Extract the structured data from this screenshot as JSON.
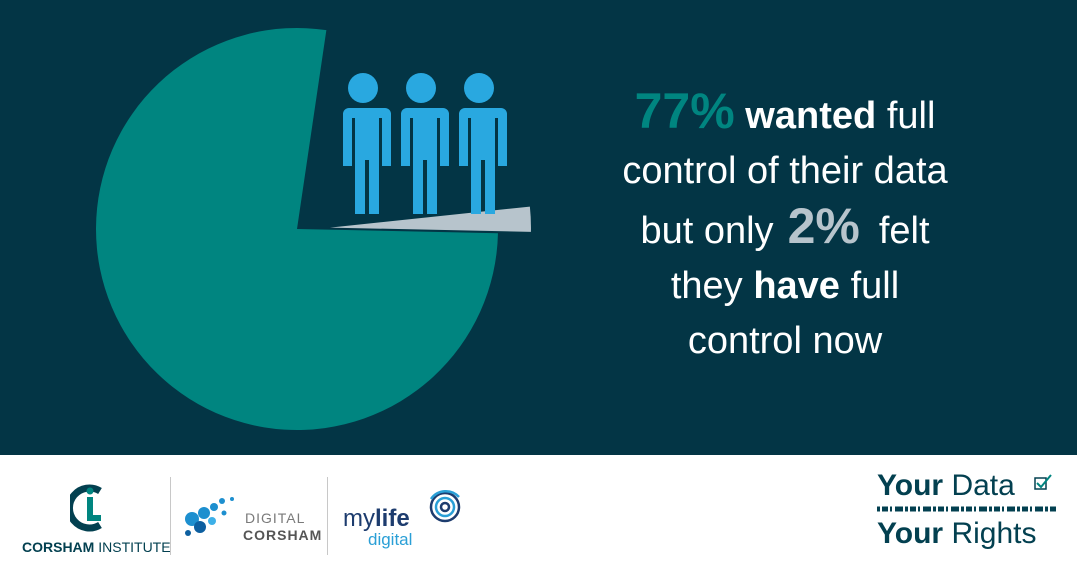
{
  "chart_data": {
    "type": "pie",
    "values": [
      77,
      2
    ],
    "value_labels": [
      "77%",
      "2%"
    ],
    "colors": [
      "#008580",
      "#b7c4cc"
    ],
    "exploded": [
      false,
      true
    ]
  },
  "headline": {
    "wanted": "wanted",
    "full_1": "full",
    "line2": "control of their data",
    "but_only": "but only",
    "felt": "felt",
    "they": "they",
    "have": "have",
    "full_2": "full",
    "line5": "control now"
  },
  "footer": {
    "corsham_institute": {
      "bold": "CORSHAM",
      "rest": "INSTITUTE"
    },
    "digital_corsham": {
      "top": "DIGITAL",
      "bottom": "CORSHAM"
    },
    "mylife_digital": {
      "my": "my",
      "life": "life",
      "digital": "digital"
    },
    "your_data_your_rights": {
      "your_1": "Your",
      "data": "Data",
      "your_2": "Your",
      "rights": "Rights"
    }
  }
}
